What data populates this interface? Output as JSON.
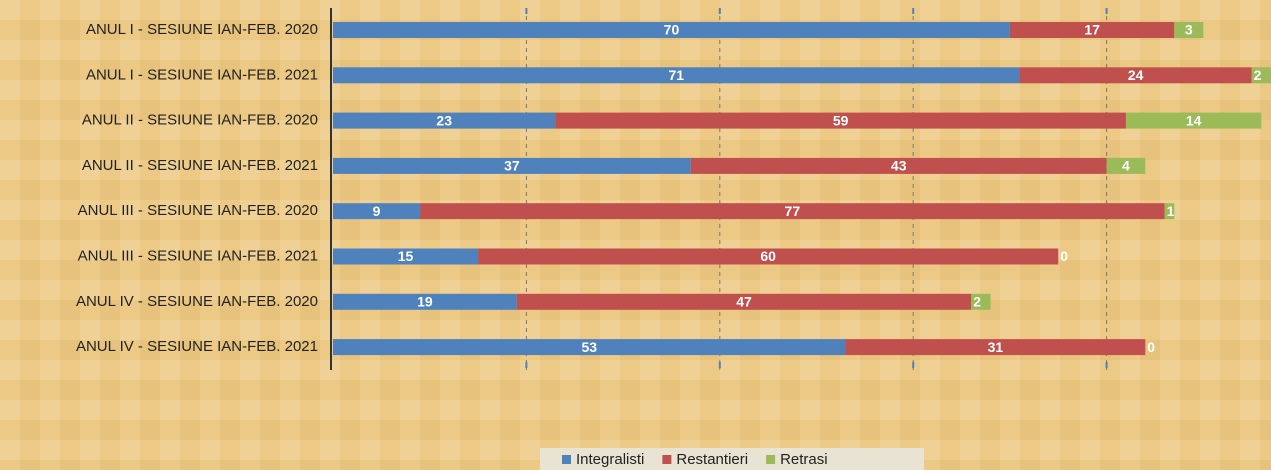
{
  "chart_data": {
    "type": "stacked-bar-horizontal",
    "categories": [
      "ANUL I - SESIUNE IAN-FEB. 2020",
      "ANUL I - SESIUNE IAN-FEB. 2021",
      "ANUL II - SESIUNE IAN-FEB. 2020",
      "ANUL II - SESIUNE IAN-FEB. 2021",
      "ANUL III - SESIUNE IAN-FEB. 2020",
      "ANUL III - SESIUNE IAN-FEB. 2021",
      "ANUL IV - SESIUNE IAN-FEB. 2020",
      "ANUL IV - SESIUNE IAN-FEB. 2021"
    ],
    "series": [
      {
        "name": "Integralisti",
        "color": "#4f81bd",
        "values": [
          70,
          71,
          23,
          37,
          9,
          15,
          19,
          53
        ]
      },
      {
        "name": "Restantieri",
        "color": "#c0504d",
        "values": [
          17,
          24,
          59,
          43,
          77,
          60,
          47,
          31
        ]
      },
      {
        "name": "Retrasi",
        "color": "#9bbb59",
        "values": [
          3,
          2,
          14,
          4,
          1,
          0,
          2,
          0
        ]
      }
    ],
    "xlim": [
      0,
      97
    ],
    "xticks": [
      0,
      20,
      40,
      60,
      80
    ],
    "grid": true,
    "legend": "bottom"
  }
}
